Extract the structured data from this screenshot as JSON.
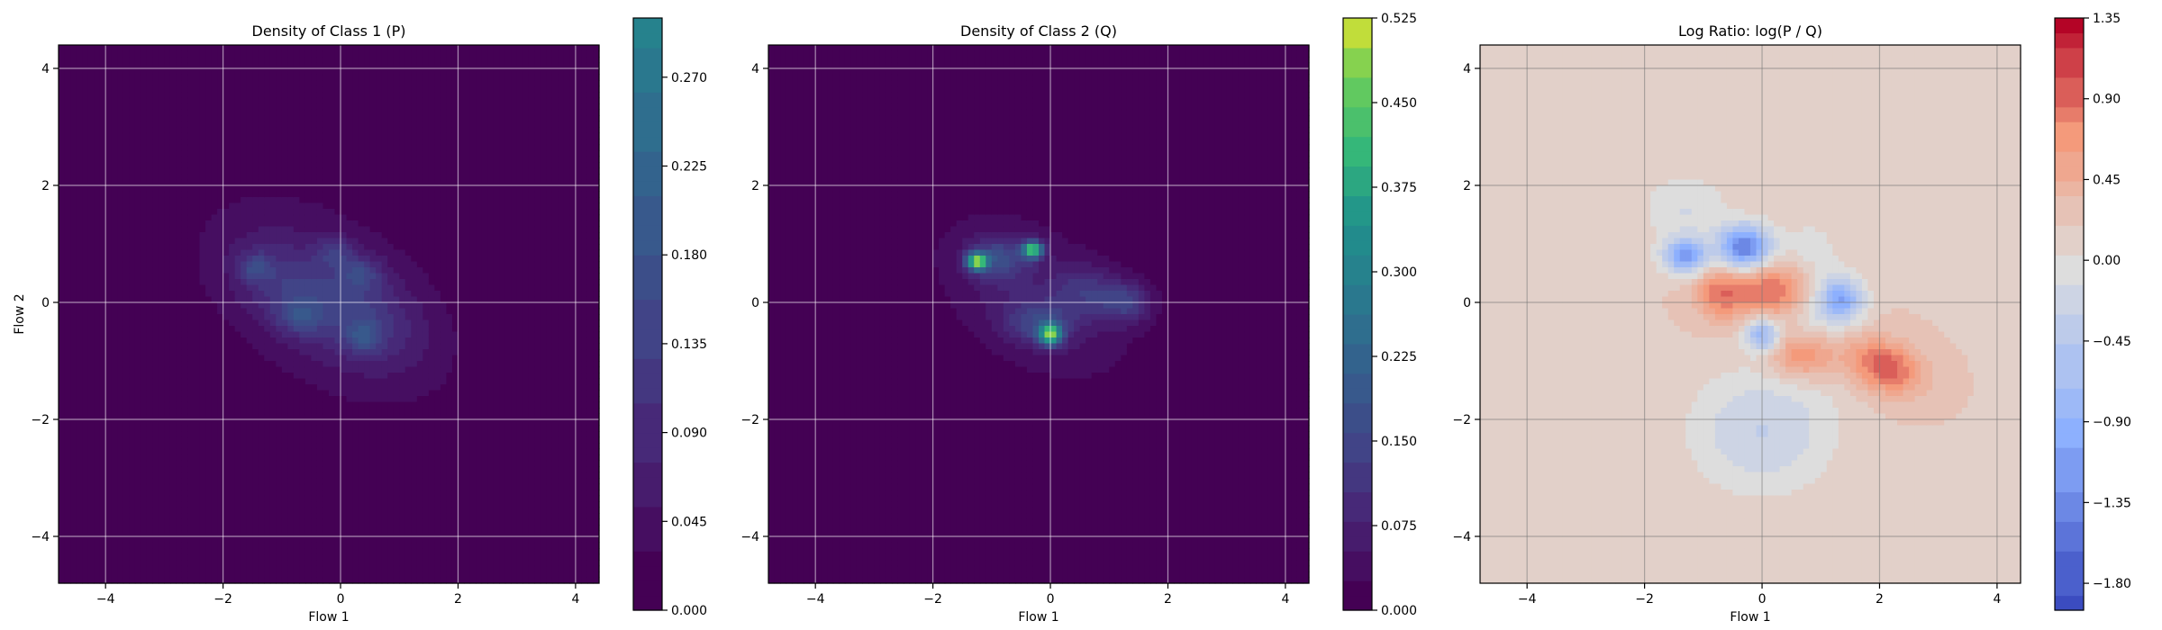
{
  "chart_data": [
    {
      "type": "heatmap",
      "title": "Density of Class 1 (P)",
      "xlabel": "Flow 1",
      "ylabel": "Flow 2",
      "xlim": [
        -4.8,
        4.4
      ],
      "ylim": [
        -4.8,
        4.4
      ],
      "xticks": [
        -4,
        -2,
        0,
        2,
        4
      ],
      "yticks": [
        -4,
        -2,
        0,
        2,
        4
      ],
      "grid": true,
      "colormap": "viridis",
      "colorbar": {
        "range": [
          0.0,
          0.3
        ],
        "ticks": [
          0.0,
          0.045,
          0.09,
          0.135,
          0.18,
          0.225,
          0.27
        ],
        "tick_labels": [
          "0.000",
          "0.045",
          "0.090",
          "0.135",
          "0.180",
          "0.225",
          "0.270"
        ],
        "cmap_max": 0.525
      },
      "blobs": [
        {
          "x": -0.25,
          "y": 0.05,
          "sx": 1.6,
          "sy": 0.95,
          "angle": -35,
          "amp": 0.075
        },
        {
          "x": -0.9,
          "y": 0.25,
          "sx": 0.7,
          "sy": 0.45,
          "angle": -30,
          "amp": 0.06
        },
        {
          "x": 0.45,
          "y": -0.25,
          "sx": 0.7,
          "sy": 0.5,
          "angle": -30,
          "amp": 0.06
        },
        {
          "x": -1.45,
          "y": 0.6,
          "sx": 0.18,
          "sy": 0.16,
          "angle": 0,
          "amp": 0.09
        },
        {
          "x": -0.7,
          "y": -0.25,
          "sx": 0.25,
          "sy": 0.2,
          "angle": 0,
          "amp": 0.08
        },
        {
          "x": 0.35,
          "y": 0.5,
          "sx": 0.25,
          "sy": 0.2,
          "angle": 0,
          "amp": 0.08
        },
        {
          "x": 0.4,
          "y": -0.6,
          "sx": 0.2,
          "sy": 0.2,
          "angle": 0,
          "amp": 0.09
        },
        {
          "x": -0.1,
          "y": 0.85,
          "sx": 0.22,
          "sy": 0.18,
          "angle": 0,
          "amp": 0.07
        }
      ]
    },
    {
      "type": "heatmap",
      "title": "Density of Class 2 (Q)",
      "xlabel": "Flow 1",
      "ylabel": "",
      "xlim": [
        -4.8,
        4.4
      ],
      "ylim": [
        -4.8,
        4.4
      ],
      "xticks": [
        -4,
        -2,
        0,
        2,
        4
      ],
      "yticks": [
        -4,
        -2,
        0,
        2,
        4
      ],
      "grid": true,
      "colormap": "viridis",
      "colorbar": {
        "range": [
          0.0,
          0.525
        ],
        "ticks": [
          0.0,
          0.075,
          0.15,
          0.225,
          0.3,
          0.375,
          0.45,
          0.525
        ],
        "tick_labels": [
          "0.000",
          "0.075",
          "0.150",
          "0.225",
          "0.300",
          "0.375",
          "0.450",
          "0.525"
        ],
        "cmap_max": 0.525
      },
      "blobs": [
        {
          "x": -0.3,
          "y": 0.1,
          "sx": 1.3,
          "sy": 0.8,
          "angle": -35,
          "amp": 0.07
        },
        {
          "x": -1.25,
          "y": 0.7,
          "sx": 0.12,
          "sy": 0.1,
          "angle": 0,
          "amp": 0.42
        },
        {
          "x": -0.3,
          "y": 0.9,
          "sx": 0.12,
          "sy": 0.1,
          "angle": 0,
          "amp": 0.4
        },
        {
          "x": 0.0,
          "y": -0.55,
          "sx": 0.13,
          "sy": 0.12,
          "angle": 0,
          "amp": 0.4
        },
        {
          "x": -0.9,
          "y": 0.75,
          "sx": 0.35,
          "sy": 0.25,
          "angle": 0,
          "amp": 0.12
        },
        {
          "x": -0.2,
          "y": -0.35,
          "sx": 0.4,
          "sy": 0.25,
          "angle": 0,
          "amp": 0.1
        },
        {
          "x": 1.3,
          "y": 0.0,
          "sx": 0.3,
          "sy": 0.25,
          "angle": 0,
          "amp": 0.12
        },
        {
          "x": 0.6,
          "y": 0.2,
          "sx": 0.35,
          "sy": 0.3,
          "angle": 0,
          "amp": 0.08
        }
      ]
    },
    {
      "type": "heatmap",
      "title": "Log Ratio: log(P / Q)",
      "xlabel": "Flow 1",
      "ylabel": "",
      "xlim": [
        -4.8,
        4.4
      ],
      "ylim": [
        -4.8,
        4.4
      ],
      "xticks": [
        -4,
        -2,
        0,
        2,
        4
      ],
      "yticks": [
        -4,
        -2,
        0,
        2,
        4
      ],
      "grid": true,
      "colormap": "coolwarm",
      "colorbar": {
        "range": [
          -1.95,
          1.35
        ],
        "ticks": [
          -1.8,
          -1.35,
          -0.9,
          -0.45,
          0.0,
          0.45,
          0.9,
          1.35
        ],
        "tick_labels": [
          "−1.80",
          "−1.35",
          "−0.90",
          "−0.45",
          "0.00",
          "0.45",
          "0.90",
          "1.35"
        ],
        "cmap_center": 0.0
      },
      "base": 0.2,
      "blobs": [
        {
          "x": -1.3,
          "y": 0.8,
          "sx": 0.25,
          "sy": 0.2,
          "angle": 0,
          "amp": -1.4
        },
        {
          "x": -0.3,
          "y": 0.95,
          "sx": 0.3,
          "sy": 0.25,
          "angle": 0,
          "amp": -1.7
        },
        {
          "x": 1.35,
          "y": 0.05,
          "sx": 0.25,
          "sy": 0.25,
          "angle": 0,
          "amp": -1.2
        },
        {
          "x": 0.0,
          "y": -0.55,
          "sx": 0.2,
          "sy": 0.2,
          "angle": 0,
          "amp": -1.0
        },
        {
          "x": 0.0,
          "y": -2.2,
          "sx": 0.8,
          "sy": 0.7,
          "angle": 0,
          "amp": -0.5
        },
        {
          "x": 0.8,
          "y": 0.1,
          "sx": 0.4,
          "sy": 0.8,
          "angle": 0,
          "amp": -0.4
        },
        {
          "x": 0.3,
          "y": 0.2,
          "sx": 0.5,
          "sy": 0.35,
          "angle": 0,
          "amp": 0.8
        },
        {
          "x": 0.7,
          "y": -0.9,
          "sx": 0.4,
          "sy": 0.3,
          "angle": 0,
          "amp": 0.7
        },
        {
          "x": 2.1,
          "y": -1.1,
          "sx": 0.45,
          "sy": 0.3,
          "angle": -20,
          "amp": 0.8
        },
        {
          "x": -0.7,
          "y": 0.15,
          "sx": 0.3,
          "sy": 0.3,
          "angle": 0,
          "amp": 0.6
        },
        {
          "x": -1.3,
          "y": 1.6,
          "sx": 0.5,
          "sy": 0.4,
          "angle": 0,
          "amp": -0.3
        }
      ]
    }
  ]
}
